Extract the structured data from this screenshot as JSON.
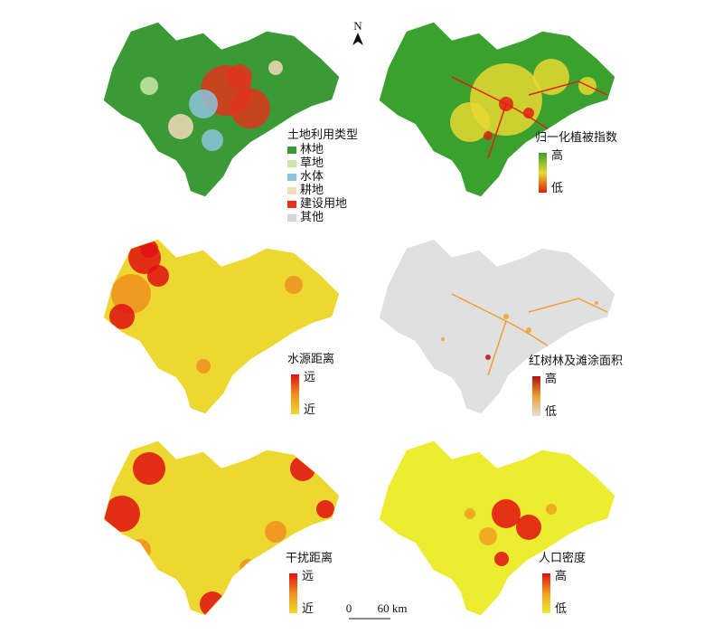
{
  "north_arrow": "N",
  "scale_bar": {
    "start": "0",
    "end": "60 km"
  },
  "panels": [
    {
      "title": "土地利用类型",
      "legend": [
        {
          "label": "林地",
          "color": "#3c9a36"
        },
        {
          "label": "草地",
          "color": "#c9e6a8"
        },
        {
          "label": "水体",
          "color": "#8cc4dc"
        },
        {
          "label": "耕地",
          "color": "#f2d9b8"
        },
        {
          "label": "建设用地",
          "color": "#e0341c"
        },
        {
          "label": "其他",
          "color": "#d4d4d4"
        }
      ]
    },
    {
      "title": "归一化植被指数",
      "high": "高",
      "low": "低",
      "colors": [
        "#3aa02e",
        "#e8d830",
        "#e02010"
      ]
    },
    {
      "title": "水源距离",
      "high": "远",
      "low": "近",
      "colors": [
        "#e01010",
        "#f09020",
        "#ecd830"
      ]
    },
    {
      "title": "红树林及滩涂面积",
      "high": "高",
      "low": "低",
      "colors": [
        "#b01010",
        "#f0a030",
        "#e0e0e0"
      ]
    },
    {
      "title": "干扰距离",
      "high": "远",
      "low": "近",
      "colors": [
        "#e01010",
        "#f09020",
        "#ecd830"
      ]
    },
    {
      "title": "人口密度",
      "high": "高",
      "low": "低",
      "colors": [
        "#e01010",
        "#f0a020",
        "#ecec30"
      ]
    }
  ]
}
